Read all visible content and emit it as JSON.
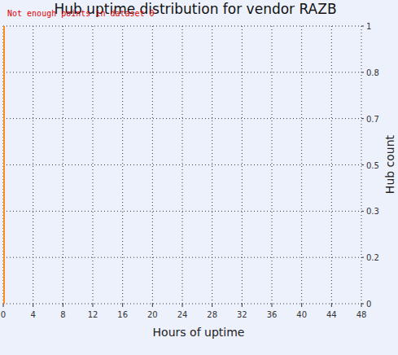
{
  "chart_data": {
    "type": "bar",
    "title": "Hub uptime distribution for vendor RAZB",
    "x_label": "Hours of uptime",
    "y_label": "Hub count",
    "annotations": [
      "Not enough points in dataset 0"
    ],
    "x": [
      0
    ],
    "values": [
      1
    ],
    "color": "#ff8c1a",
    "xlim": [
      0,
      48
    ],
    "xticks": [
      0,
      4,
      8,
      12,
      16,
      20,
      24,
      28,
      32,
      36,
      40,
      44,
      48
    ],
    "ylim": [
      0,
      1
    ],
    "yticks": [
      0,
      {
        "value": 0.1667,
        "label": "0.2"
      },
      {
        "value": 0.3333,
        "label": "0.3"
      },
      0.5,
      {
        "value": 0.6667,
        "label": "0.7"
      },
      {
        "value": 0.8333,
        "label": "0.8"
      },
      1
    ],
    "grid": true
  }
}
